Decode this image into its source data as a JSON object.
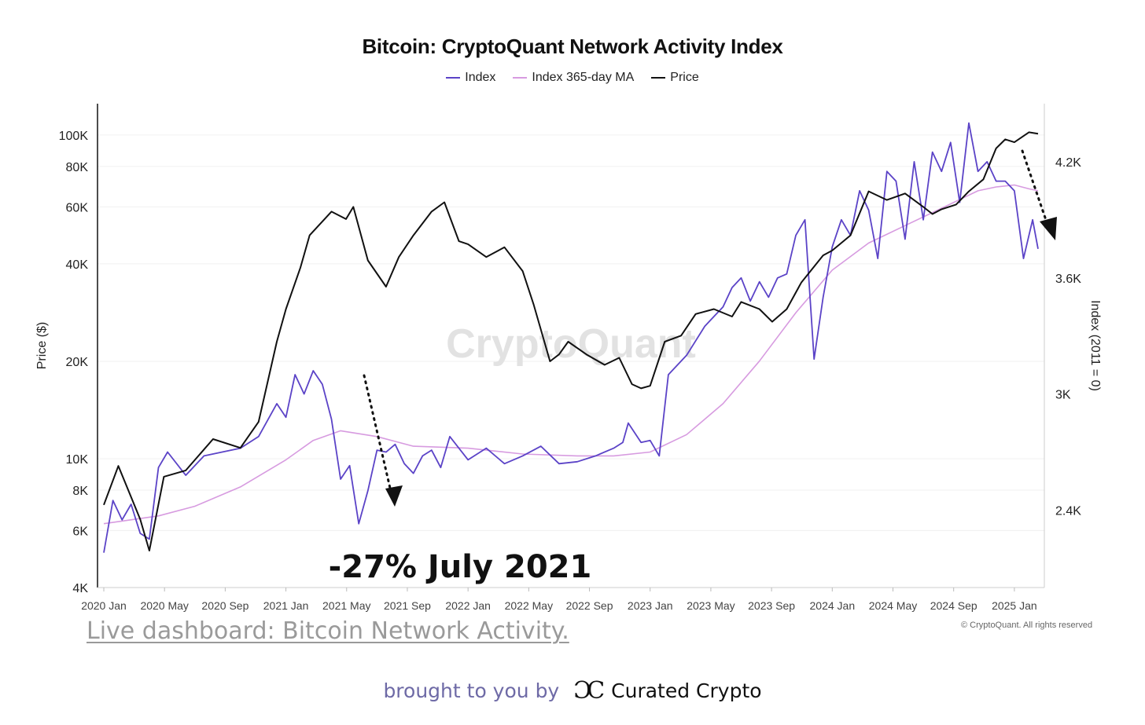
{
  "chart_data": {
    "type": "line",
    "title": "Bitcoin: CryptoQuant Network Activity Index",
    "legend": [
      {
        "name": "Index",
        "color": "#5b43c7"
      },
      {
        "name": "Index 365-day MA",
        "color": "#d79be0"
      },
      {
        "name": "Price",
        "color": "#111111"
      }
    ],
    "x_ticks": [
      "2020 Jan",
      "2020 May",
      "2020 Sep",
      "2021 Jan",
      "2021 May",
      "2021 Sep",
      "2022 Jan",
      "2022 May",
      "2022 Sep",
      "2023 Jan",
      "2023 May",
      "2023 Sep",
      "2024 Jan",
      "2024 May",
      "2024 Sep",
      "2025 Jan"
    ],
    "xlim": [
      2020.0,
      2025.13
    ],
    "ylabel_left": "Price ($)",
    "ylabel_right": "Index (2011 = 0)",
    "y_left_scale": "log",
    "y_left_ticks": [
      {
        "value": 4000,
        "label": "4K"
      },
      {
        "value": 6000,
        "label": "6K"
      },
      {
        "value": 8000,
        "label": "8K"
      },
      {
        "value": 10000,
        "label": "10K"
      },
      {
        "value": 20000,
        "label": "20K"
      },
      {
        "value": 40000,
        "label": "40K"
      },
      {
        "value": 60000,
        "label": "60K"
      },
      {
        "value": 80000,
        "label": "80K"
      },
      {
        "value": 100000,
        "label": "100K"
      }
    ],
    "ylim_left": [
      4000,
      125000
    ],
    "y_right_ticks": [
      {
        "value": 2400,
        "label": "2.4K"
      },
      {
        "value": 3000,
        "label": "3K"
      },
      {
        "value": 3600,
        "label": "3.6K"
      },
      {
        "value": 4200,
        "label": "4.2K"
      }
    ],
    "ylim_right": [
      2000,
      4500
    ],
    "series": [
      {
        "name": "Price",
        "axis": "left",
        "x": [
          2020.0,
          2020.08,
          2020.2,
          2020.25,
          2020.33,
          2020.45,
          2020.6,
          2020.75,
          2020.85,
          2020.95,
          2021.0,
          2021.08,
          2021.13,
          2021.25,
          2021.33,
          2021.37,
          2021.45,
          2021.55,
          2021.62,
          2021.7,
          2021.8,
          2021.87,
          2021.95,
          2022.0,
          2022.1,
          2022.2,
          2022.3,
          2022.36,
          2022.45,
          2022.5,
          2022.55,
          2022.65,
          2022.75,
          2022.83,
          2022.9,
          2022.95,
          2023.0,
          2023.08,
          2023.17,
          2023.25,
          2023.35,
          2023.45,
          2023.5,
          2023.6,
          2023.67,
          2023.75,
          2023.83,
          2023.95,
          2024.0,
          2024.1,
          2024.2,
          2024.3,
          2024.4,
          2024.5,
          2024.55,
          2024.6,
          2024.68,
          2024.75,
          2024.83,
          2024.9,
          2024.95,
          2025.0,
          2025.08,
          2025.13
        ],
        "y": [
          7200,
          9500,
          6500,
          5200,
          8800,
          9200,
          11500,
          10800,
          13000,
          23000,
          29000,
          39000,
          49000,
          58000,
          55000,
          60000,
          41000,
          34000,
          42000,
          49000,
          58000,
          62000,
          47000,
          46000,
          42000,
          45000,
          38000,
          30000,
          20000,
          21000,
          23000,
          21000,
          19500,
          20500,
          17000,
          16500,
          16800,
          23000,
          24000,
          28000,
          29000,
          27500,
          30500,
          29000,
          26500,
          29000,
          35000,
          42500,
          44000,
          49000,
          67000,
          63000,
          66000,
          60000,
          57000,
          59000,
          61000,
          67000,
          73000,
          91000,
          97000,
          95000,
          102000,
          101000
        ]
      },
      {
        "name": "Index",
        "axis": "right",
        "x": [
          2020.0,
          2020.05,
          2020.1,
          2020.15,
          2020.2,
          2020.25,
          2020.3,
          2020.35,
          2020.45,
          2020.55,
          2020.65,
          2020.75,
          2020.85,
          2020.95,
          2021.0,
          2021.05,
          2021.1,
          2021.15,
          2021.2,
          2021.25,
          2021.3,
          2021.35,
          2021.4,
          2021.45,
          2021.5,
          2021.55,
          2021.6,
          2021.65,
          2021.7,
          2021.75,
          2021.8,
          2021.85,
          2021.9,
          2022.0,
          2022.1,
          2022.2,
          2022.3,
          2022.4,
          2022.5,
          2022.6,
          2022.7,
          2022.8,
          2022.85,
          2022.88,
          2022.95,
          2023.0,
          2023.05,
          2023.1,
          2023.2,
          2023.3,
          2023.35,
          2023.4,
          2023.45,
          2023.5,
          2023.55,
          2023.6,
          2023.65,
          2023.7,
          2023.75,
          2023.8,
          2023.85,
          2023.9,
          2023.95,
          2024.0,
          2024.05,
          2024.1,
          2024.15,
          2024.2,
          2024.25,
          2024.3,
          2024.35,
          2024.4,
          2024.45,
          2024.5,
          2024.55,
          2024.6,
          2024.65,
          2024.7,
          2024.75,
          2024.8,
          2024.85,
          2024.9,
          2024.95,
          2025.0,
          2025.05,
          2025.1,
          2025.13
        ],
        "y": [
          2180,
          2450,
          2350,
          2430,
          2280,
          2250,
          2620,
          2700,
          2580,
          2680,
          2700,
          2720,
          2780,
          2950,
          2880,
          3100,
          3000,
          3120,
          3050,
          2870,
          2560,
          2630,
          2330,
          2500,
          2710,
          2700,
          2740,
          2640,
          2590,
          2680,
          2710,
          2620,
          2780,
          2660,
          2720,
          2640,
          2680,
          2730,
          2640,
          2650,
          2680,
          2720,
          2750,
          2850,
          2750,
          2760,
          2680,
          3100,
          3200,
          3350,
          3400,
          3450,
          3550,
          3600,
          3480,
          3580,
          3500,
          3600,
          3620,
          3820,
          3900,
          3180,
          3500,
          3760,
          3900,
          3820,
          4050,
          3950,
          3700,
          4150,
          4100,
          3800,
          4200,
          3900,
          4250,
          4150,
          4300,
          3990,
          4400,
          4150,
          4200,
          4100,
          4100,
          4050,
          3700,
          3900,
          3750
        ]
      },
      {
        "name": "Index 365-day MA",
        "axis": "right",
        "x": [
          2020.0,
          2020.3,
          2020.5,
          2020.75,
          2021.0,
          2021.15,
          2021.3,
          2021.5,
          2021.7,
          2022.0,
          2022.3,
          2022.6,
          2022.8,
          2023.0,
          2023.2,
          2023.4,
          2023.6,
          2023.8,
          2024.0,
          2024.2,
          2024.4,
          2024.6,
          2024.8,
          2024.9,
          2025.0,
          2025.08,
          2025.13
        ],
        "y": [
          2330,
          2370,
          2420,
          2520,
          2660,
          2760,
          2810,
          2780,
          2730,
          2720,
          2690,
          2680,
          2680,
          2700,
          2790,
          2950,
          3170,
          3420,
          3640,
          3780,
          3870,
          3960,
          4050,
          4070,
          4080,
          4060,
          4050
        ]
      }
    ],
    "annotations": [
      {
        "text": "-27% July 2021",
        "x": 2021.65,
        "y_axis": "right",
        "y": 2100
      }
    ],
    "watermark": "CryptoQuant",
    "copyright": "© CryptoQuant. All rights reserved"
  },
  "footer": {
    "link_text": "Live dashboard: Bitcoin Network Activity.",
    "brought_by": "brought to you by",
    "brand_logo_text": "ƆC",
    "brand_name": "Curated Crypto"
  }
}
